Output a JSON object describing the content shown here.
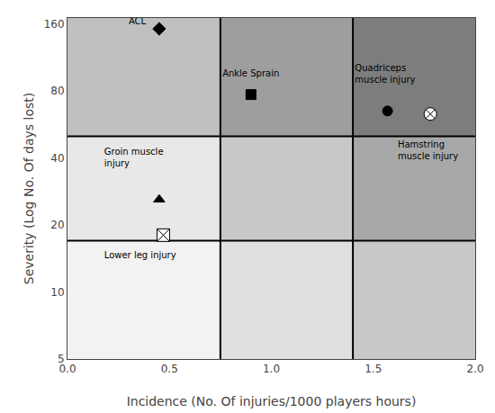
{
  "chart_data": {
    "type": "scatter",
    "xlabel": "Incidence (No. Of injuries/1000 players hours)",
    "ylabel": "Severity (Log No. Of days lost)",
    "xlim": [
      0.0,
      2.0
    ],
    "ylim": [
      5,
      170
    ],
    "log": "y",
    "grid": false,
    "xticks": [
      {
        "value": 0.0,
        "label": "0.0"
      },
      {
        "value": 0.5,
        "label": "0.5"
      },
      {
        "value": 1.0,
        "label": "1.0"
      },
      {
        "value": 1.5,
        "label": "1.5"
      },
      {
        "value": 2.0,
        "label": "2.0"
      }
    ],
    "yticks": [
      5,
      10,
      20,
      40,
      80,
      160
    ],
    "vlines": [
      0.75,
      1.4
    ],
    "hlines": [
      17,
      50
    ],
    "cell_colors": [
      [
        "#f2f2f2",
        "#e0e0e0",
        "#c8c8c8"
      ],
      [
        "#e8e8e8",
        "#c8c8c8",
        "#a8a8a8"
      ],
      [
        "#c0c0c0",
        "#9e9e9e",
        "#7d7d7d"
      ]
    ],
    "color": "black",
    "points": [
      {
        "x": 0.45,
        "y": 152,
        "marker": "diamond",
        "label": "ACL",
        "label_x": 0.3,
        "label_y": 163
      },
      {
        "x": 0.9,
        "y": 77,
        "marker": "square",
        "label": "Ankle Sprain",
        "label_x": 0.76,
        "label_y": 95
      },
      {
        "x": 1.57,
        "y": 65,
        "marker": "circle",
        "label": "Quadriceps\nmuscle injury",
        "label_x": 1.41,
        "label_y": 95
      },
      {
        "x": 1.78,
        "y": 63,
        "marker": "circle-x",
        "label": "Hamstring\nmuscle injury",
        "label_x": 1.62,
        "label_y": 43
      },
      {
        "x": 0.45,
        "y": 26,
        "marker": "triangle-up",
        "label": "Groin muscle\ninjury",
        "label_x": 0.18,
        "label_y": 40
      },
      {
        "x": 0.47,
        "y": 18,
        "marker": "square-x",
        "label": "Lower leg injury",
        "label_x": 0.18,
        "label_y": 14.5
      }
    ]
  }
}
